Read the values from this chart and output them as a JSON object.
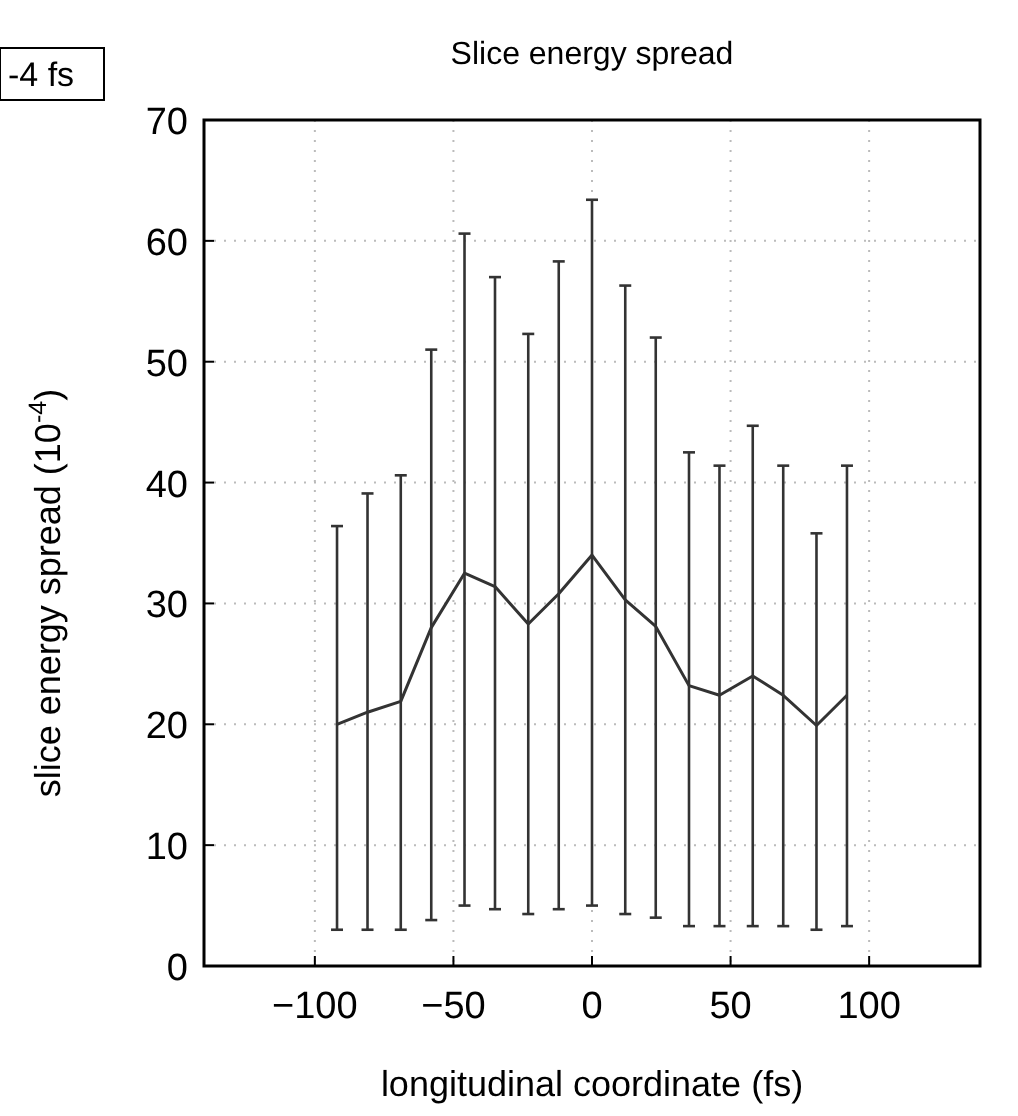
{
  "chart_data": {
    "type": "line",
    "title": "Slice energy spread",
    "xlabel": "longitudinal coordinate (fs)",
    "ylabel": "slice energy spread (10$^{-4}$)",
    "annotations": [
      "-4 fs"
    ],
    "x": [
      -92,
      -81,
      -69,
      -58,
      -46,
      -35,
      -23,
      -12,
      0,
      12,
      23,
      35,
      46,
      58,
      69,
      81,
      92
    ],
    "series": [
      {
        "color": "#333333",
        "values": [
          20,
          21,
          21.9,
          28,
          32.5,
          31.4,
          28.3,
          30.8,
          34,
          30.3,
          28.1,
          23.2,
          22.4,
          24,
          22.4,
          19.9,
          22.4
        ],
        "errors": [
          [
            3,
            36.4
          ],
          [
            3,
            39.1
          ],
          [
            3,
            40.6
          ],
          [
            3.8,
            51
          ],
          [
            5,
            60.6
          ],
          [
            4.7,
            57
          ],
          [
            4.3,
            52.3
          ],
          [
            4.7,
            58.3
          ],
          [
            5,
            63.4
          ],
          [
            4.3,
            56.3
          ],
          [
            4,
            52
          ],
          [
            3.3,
            42.5
          ],
          [
            3.3,
            41.4
          ],
          [
            3.3,
            44.7
          ],
          [
            3.3,
            41.4
          ],
          [
            3,
            35.8
          ],
          [
            3.3,
            41.4
          ]
        ]
      }
    ],
    "xlim": [
      -140,
      140
    ],
    "xticks": [
      -100,
      -50,
      0,
      50,
      100
    ],
    "ylim": [
      0,
      70
    ],
    "yticks": [
      0,
      10,
      20,
      30,
      40,
      50,
      60,
      70
    ],
    "grid": true,
    "marker": "none",
    "line_style": "solid"
  }
}
